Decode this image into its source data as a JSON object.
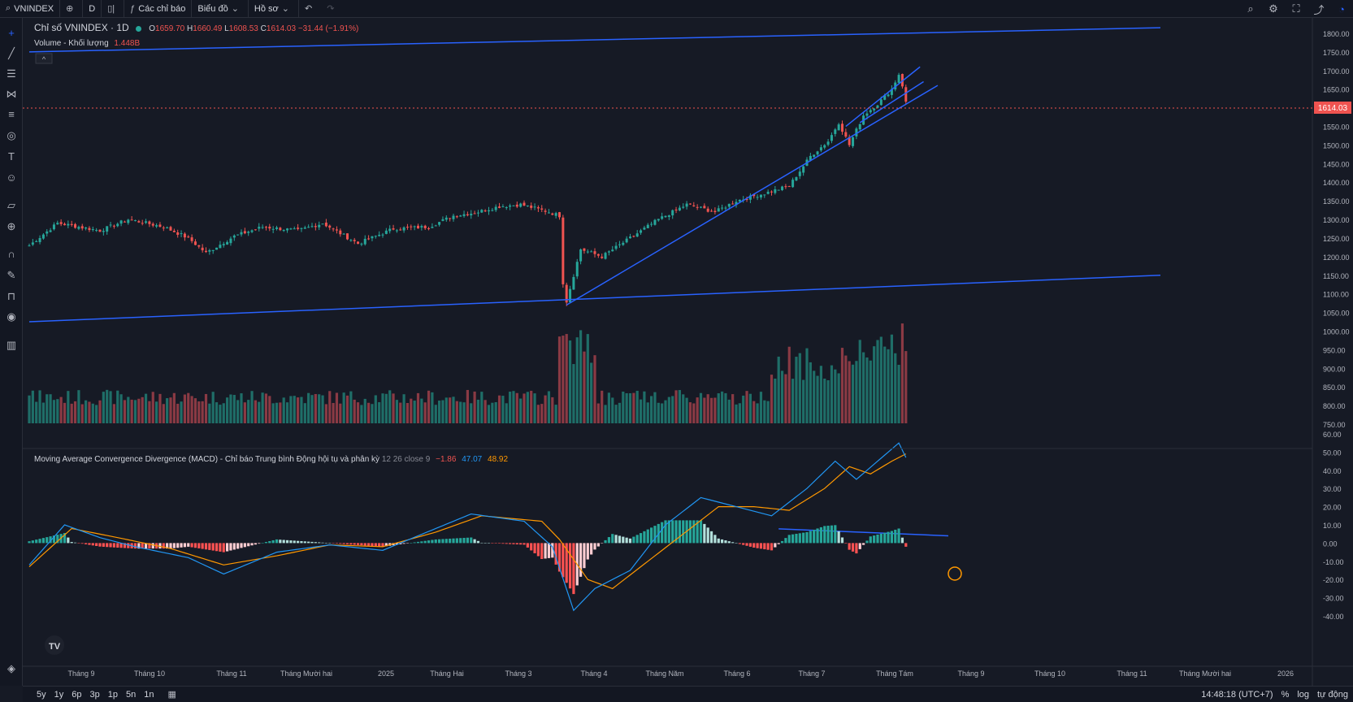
{
  "toolbar": {
    "symbol": "VNINDEX",
    "interval": "D",
    "indicators": "Các chỉ báo",
    "chart_menu": "Biểu đồ",
    "profile_menu": "Hồ sơ"
  },
  "legend": {
    "title": "Chỉ số VNINDEX · 1D",
    "o_label": "O",
    "o_value": "1659.70",
    "h_label": "H",
    "h_value": "1660.49",
    "l_label": "L",
    "l_value": "1608.53",
    "c_label": "C",
    "c_value": "1614.03",
    "change": "−31.44 (−1.91%)",
    "volume_label": "Volume - Khối lượng",
    "volume_value": "1.448B"
  },
  "macd_legend": {
    "title": "Moving Average Convergence Divergence (MACD) - Chỉ báo Trung bình Động hội tụ và phân kỳ",
    "params": "12 26 close 9",
    "hist": "−1.86",
    "macd": "47.07",
    "signal": "48.92"
  },
  "price_axis": {
    "labels": [
      "1800.00",
      "1750.00",
      "1700.00",
      "1650.00",
      "1600.00",
      "1550.00",
      "1500.00",
      "1450.00",
      "1400.00",
      "1350.00",
      "1300.00",
      "1250.00",
      "1200.00",
      "1150.00",
      "1100.00",
      "1050.00",
      "1000.00",
      "950.00",
      "900.00",
      "850.00",
      "800.00",
      "750.00"
    ],
    "last_price": "1614.03"
  },
  "macd_axis": {
    "labels": [
      "60.00",
      "50.00",
      "40.00",
      "30.00",
      "20.00",
      "10.00",
      "0.00",
      "-10.00",
      "-20.00",
      "-30.00",
      "-40.00"
    ]
  },
  "time_axis": [
    "Tháng 9",
    "Tháng 10",
    "Tháng 11",
    "Tháng Mười hai",
    "2025",
    "Tháng Hai",
    "Tháng 3",
    "Tháng 4",
    "Tháng Năm",
    "Tháng 6",
    "Tháng 7",
    "Tháng Tám",
    "Tháng 9",
    "Tháng 10",
    "Tháng 11",
    "Tháng Mười hai",
    "2026"
  ],
  "bottom": {
    "ranges": [
      "5y",
      "1y",
      "6p",
      "3p",
      "1p",
      "5n",
      "1n"
    ],
    "time": "14:48:18 (UTC+7)",
    "percent": "%",
    "log": "log",
    "auto": "tự động"
  },
  "colors": {
    "up": "#26a69a",
    "down": "#ef5350",
    "background": "#161a25",
    "trendline": "#2962ff",
    "macd_line": "#2196f3",
    "signal_line": "#ff9800"
  },
  "chart_data": {
    "type": "candlestick",
    "symbol": "VNINDEX",
    "interval": "1D",
    "close_path": [
      [
        0,
        1230
      ],
      [
        8,
        1290
      ],
      [
        20,
        1270
      ],
      [
        28,
        1300
      ],
      [
        38,
        1280
      ],
      [
        45,
        1250
      ],
      [
        50,
        1210
      ],
      [
        58,
        1255
      ],
      [
        66,
        1280
      ],
      [
        76,
        1270
      ],
      [
        83,
        1290
      ],
      [
        93,
        1235
      ],
      [
        103,
        1275
      ],
      [
        113,
        1280
      ],
      [
        120,
        1310
      ],
      [
        126,
        1318
      ],
      [
        133,
        1335
      ],
      [
        139,
        1340
      ],
      [
        147,
        1320
      ],
      [
        150,
        1310
      ],
      [
        151,
        1130
      ],
      [
        152,
        1080
      ],
      [
        156,
        1220
      ],
      [
        162,
        1200
      ],
      [
        170,
        1250
      ],
      [
        178,
        1300
      ],
      [
        186,
        1340
      ],
      [
        194,
        1320
      ],
      [
        200,
        1350
      ],
      [
        208,
        1370
      ],
      [
        215,
        1390
      ],
      [
        221,
        1470
      ],
      [
        226,
        1510
      ],
      [
        229,
        1560
      ],
      [
        232,
        1500
      ],
      [
        236,
        1580
      ],
      [
        240,
        1610
      ],
      [
        244,
        1650
      ],
      [
        246,
        1690
      ],
      [
        247,
        1660
      ],
      [
        248,
        1614
      ]
    ],
    "trendlines": [
      {
        "from": [
          0,
          1750
        ],
        "to": [
          320,
          1815
        ]
      },
      {
        "from": [
          0,
          1025
        ],
        "to": [
          320,
          1150
        ]
      },
      {
        "from": [
          152,
          1070
        ],
        "to": [
          257,
          1660
        ]
      },
      {
        "from": [
          231,
          1550
        ],
        "to": [
          252,
          1710
        ]
      },
      {
        "from": [
          235,
          1560
        ],
        "to": [
          253,
          1670
        ]
      },
      {
        "from": [
          212,
          7.8
        ],
        "to": [
          260,
          4
        ]
      }
    ],
    "volume_max_ratio": 1,
    "macd": {
      "macd_path": [
        [
          0,
          -12
        ],
        [
          10,
          10
        ],
        [
          20,
          3
        ],
        [
          30,
          -2
        ],
        [
          45,
          -8
        ],
        [
          55,
          -17
        ],
        [
          70,
          -5
        ],
        [
          85,
          -1
        ],
        [
          100,
          -4
        ],
        [
          115,
          8
        ],
        [
          125,
          16
        ],
        [
          140,
          12
        ],
        [
          148,
          -2
        ],
        [
          154,
          -37
        ],
        [
          160,
          -25
        ],
        [
          170,
          -15
        ],
        [
          180,
          10
        ],
        [
          190,
          25
        ],
        [
          200,
          20
        ],
        [
          210,
          15
        ],
        [
          220,
          30
        ],
        [
          228,
          45
        ],
        [
          234,
          35
        ],
        [
          240,
          45
        ],
        [
          246,
          55
        ],
        [
          248,
          47
        ]
      ],
      "signal_path": [
        [
          0,
          -13
        ],
        [
          12,
          8
        ],
        [
          25,
          3
        ],
        [
          40,
          -3
        ],
        [
          55,
          -12
        ],
        [
          70,
          -7
        ],
        [
          85,
          -1
        ],
        [
          100,
          -2
        ],
        [
          115,
          6
        ],
        [
          128,
          15
        ],
        [
          145,
          12
        ],
        [
          150,
          2
        ],
        [
          158,
          -20
        ],
        [
          165,
          -25
        ],
        [
          175,
          -10
        ],
        [
          185,
          5
        ],
        [
          195,
          20
        ],
        [
          205,
          20
        ],
        [
          215,
          18
        ],
        [
          225,
          30
        ],
        [
          232,
          42
        ],
        [
          238,
          38
        ],
        [
          244,
          45
        ],
        [
          248,
          49
        ]
      ]
    }
  }
}
